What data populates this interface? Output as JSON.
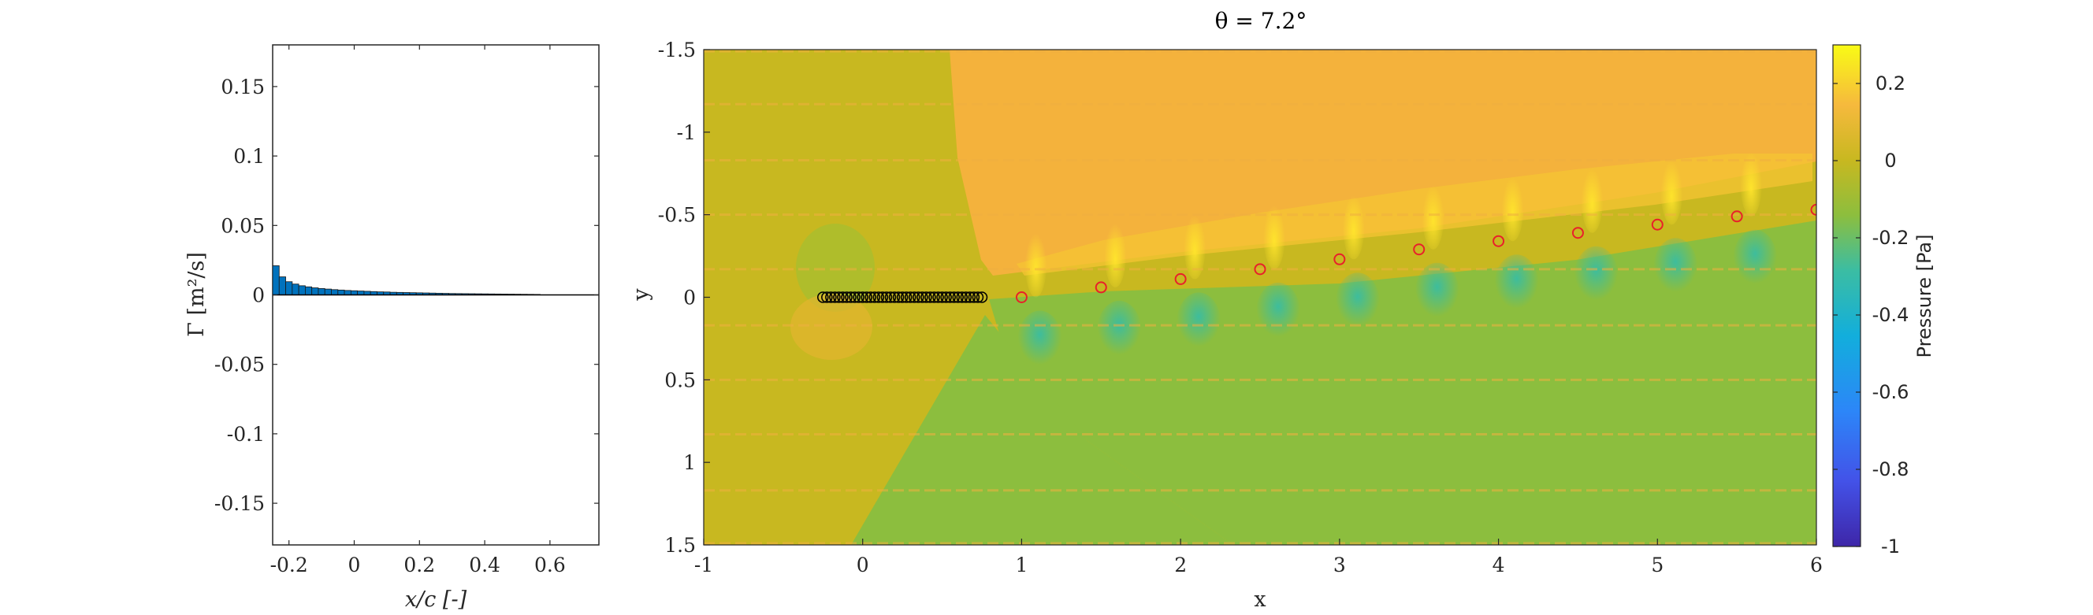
{
  "chart_data": [
    {
      "type": "bar",
      "xlabel": "x/c [-]",
      "ylabel": "Γ [m²/s]",
      "xlim": [
        -0.25,
        0.75
      ],
      "ylim": [
        -0.18,
        0.18
      ],
      "xticks": [
        "-0.2",
        "0",
        "0.2",
        "0.4",
        "0.6"
      ],
      "xtick_values": [
        -0.2,
        0,
        0.2,
        0.4,
        0.6
      ],
      "yticks": [
        "0.15",
        "0.1",
        "0.05",
        "0",
        "-0.05",
        "-0.1",
        "-0.15"
      ],
      "ytick_values": [
        0.15,
        0.1,
        0.05,
        0,
        -0.05,
        -0.1,
        -0.15
      ],
      "bar_width": 0.02,
      "bar_color": "#0072BD",
      "x": [
        -0.24,
        -0.22,
        -0.2,
        -0.18,
        -0.16,
        -0.14,
        -0.12,
        -0.1,
        -0.08,
        -0.06,
        -0.04,
        -0.02,
        0,
        0.02,
        0.04,
        0.06,
        0.08,
        0.1,
        0.12,
        0.14,
        0.16,
        0.18,
        0.2,
        0.22,
        0.24,
        0.26,
        0.28,
        0.3,
        0.32,
        0.34,
        0.36,
        0.38,
        0.4,
        0.42,
        0.44,
        0.46,
        0.48,
        0.5,
        0.52,
        0.54,
        0.56
      ],
      "values": [
        0.021,
        0.013,
        0.0095,
        0.0078,
        0.0066,
        0.0058,
        0.0051,
        0.0046,
        0.0042,
        0.0038,
        0.0035,
        0.0032,
        0.003,
        0.0028,
        0.0026,
        0.0024,
        0.0022,
        0.0021,
        0.0019,
        0.0018,
        0.0017,
        0.0016,
        0.0015,
        0.0014,
        0.0013,
        0.0012,
        0.0011,
        0.001,
        0.00095,
        0.0009,
        0.00085,
        0.0008,
        0.00075,
        0.0007,
        0.00065,
        0.0006,
        0.00055,
        0.0005,
        0.00045,
        0.0004,
        0.00035
      ]
    },
    {
      "type": "heatmap",
      "title": "θ = 7.2°",
      "xlabel": "x",
      "ylabel": "y",
      "xlim": [
        -1,
        6
      ],
      "ylim": [
        -1.5,
        1.5
      ],
      "y_axis_reversed": true,
      "xticks": [
        "-1",
        "0",
        "1",
        "2",
        "3",
        "4",
        "5",
        "6"
      ],
      "xtick_values": [
        -1,
        0,
        1,
        2,
        3,
        4,
        5,
        6
      ],
      "yticks": [
        "-1.5",
        "-1",
        "-0.5",
        "0",
        "0.5",
        "1",
        "1.5"
      ],
      "ytick_values": [
        -1.5,
        -1,
        -0.5,
        0,
        0.5,
        1,
        1.5
      ],
      "colorbar": {
        "label": "Pressure [Pa]",
        "range": [
          -1,
          0.3
        ],
        "ticks": [
          "0.2",
          "0",
          "-0.2",
          "-0.4",
          "-0.6",
          "-0.8",
          "-1"
        ],
        "tick_values": [
          0.2,
          0,
          -0.2,
          -0.4,
          -0.6,
          -0.8,
          -1
        ],
        "colormap": "parula"
      },
      "plate_points": {
        "marker": "o",
        "color": "#000000",
        "x": [
          -0.25,
          -0.225,
          -0.2,
          -0.175,
          -0.15,
          -0.125,
          -0.1,
          -0.075,
          -0.05,
          -0.025,
          0,
          0.025,
          0.05,
          0.075,
          0.1,
          0.125,
          0.15,
          0.175,
          0.2,
          0.225,
          0.25,
          0.275,
          0.3,
          0.325,
          0.35,
          0.375,
          0.4,
          0.425,
          0.45,
          0.475,
          0.5,
          0.525,
          0.55,
          0.575,
          0.6,
          0.625,
          0.65,
          0.675,
          0.7,
          0.725,
          0.75
        ],
        "y": 0
      },
      "wake_vortices": {
        "marker": "o",
        "color": "#E8202A",
        "x": [
          1.0,
          1.5,
          2.0,
          2.5,
          3.0,
          3.5,
          4.0,
          4.5,
          5.0,
          5.5,
          6.0
        ],
        "y": [
          0.0,
          -0.06,
          -0.11,
          -0.17,
          -0.23,
          -0.29,
          -0.34,
          -0.39,
          -0.44,
          -0.49,
          -0.53
        ]
      },
      "streak_y": [
        -1.49,
        -1.17,
        -0.83,
        -0.5,
        -0.17,
        0.17,
        0.5,
        0.83,
        1.17,
        1.49
      ],
      "field_colors": {
        "upstream": "#C8B820",
        "upper": "#F4B23C",
        "lower": "#8CBE3E",
        "warm": "#F6C433",
        "peak": "#FFDD2C",
        "cool": "#4EBF94"
      }
    }
  ]
}
